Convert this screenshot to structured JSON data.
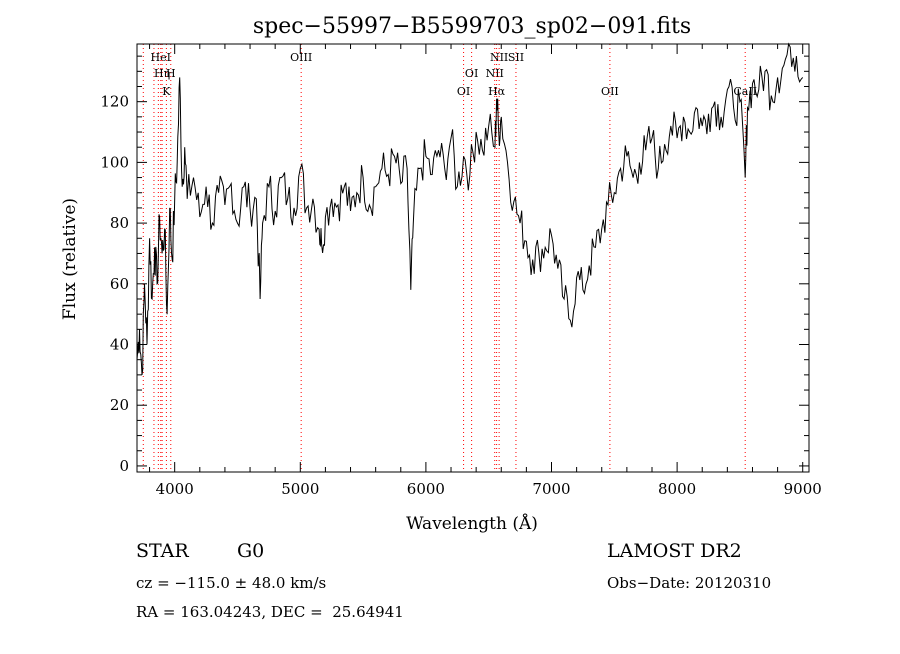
{
  "chart_data": {
    "type": "line",
    "title": "spec−55997−B5599703_sp02−091.fits",
    "xlabel": "Wavelength (Å)",
    "ylabel": "Flux (relative)",
    "xlim": [
      3700,
      9050
    ],
    "ylim": [
      -2,
      139
    ],
    "xticks": [
      4000,
      5000,
      6000,
      7000,
      8000,
      9000
    ],
    "yticks": [
      0,
      20,
      40,
      60,
      80,
      100,
      120
    ],
    "grid": false,
    "line_color": "#000000",
    "marker_color": "#ff0000",
    "series": [
      {
        "x": [
          3700,
          3720,
          3740,
          3760,
          3780,
          3800,
          3820,
          3840,
          3860,
          3880,
          3900,
          3920,
          3940,
          3960,
          3980,
          4000,
          4020,
          4040,
          4060,
          4080,
          4100,
          4150,
          4200,
          4250,
          4300,
          4350,
          4400,
          4450,
          4500,
          4550,
          4600,
          4650,
          4680,
          4700,
          4750,
          4800,
          4850,
          4900,
          4950,
          5000,
          5050,
          5100,
          5150,
          5170,
          5200,
          5250,
          5300,
          5350,
          5400,
          5450,
          5500,
          5550,
          5600,
          5650,
          5700,
          5750,
          5800,
          5850,
          5880,
          5900,
          5950,
          6000,
          6050,
          6100,
          6150,
          6200,
          6250,
          6300,
          6350,
          6400,
          6450,
          6500,
          6550,
          6563,
          6580,
          6600,
          6650,
          6700,
          6750,
          6800,
          6850,
          6900,
          6950,
          7000,
          7050,
          7100,
          7150,
          7200,
          7250,
          7300,
          7350,
          7400,
          7450,
          7500,
          7550,
          7600,
          7650,
          7700,
          7750,
          7800,
          7850,
          7900,
          7950,
          8000,
          8050,
          8100,
          8150,
          8200,
          8250,
          8300,
          8350,
          8400,
          8450,
          8500,
          8542,
          8560,
          8600,
          8650,
          8700,
          8750,
          8800,
          8850,
          8900,
          8950,
          9000
        ],
        "y": [
          35,
          45,
          30,
          60,
          40,
          75,
          55,
          72,
          60,
          82,
          70,
          78,
          50,
          85,
          68,
          88,
          100,
          128,
          92,
          105,
          88,
          95,
          82,
          92,
          80,
          90,
          86,
          93,
          80,
          92,
          85,
          88,
          55,
          80,
          92,
          84,
          95,
          88,
          85,
          98,
          85,
          88,
          78,
          73,
          82,
          88,
          86,
          92,
          84,
          90,
          95,
          86,
          92,
          98,
          96,
          102,
          93,
          98,
          58,
          80,
          98,
          102,
          96,
          104,
          98,
          108,
          92,
          102,
          96,
          110,
          104,
          112,
          105,
          121,
          110,
          115,
          100,
          87,
          80,
          74,
          68,
          70,
          72,
          76,
          65,
          55,
          48,
          62,
          58,
          66,
          72,
          78,
          86,
          90,
          98,
          102,
          95,
          100,
          104,
          108,
          98,
          106,
          112,
          108,
          115,
          110,
          118,
          112,
          116,
          120,
          115,
          124,
          118,
          120,
          95,
          118,
          126,
          124,
          130,
          122,
          128,
          132,
          138,
          135,
          128
        ]
      }
    ],
    "lines": [
      {
        "x": 3750,
        "row": 0,
        "text": ""
      },
      {
        "x": 3835,
        "row": 1,
        "text": ""
      },
      {
        "x": 3870,
        "row": 0,
        "text": ""
      },
      {
        "x": 3889,
        "row": 0,
        "text": "HeI"
      },
      {
        "x": 3900,
        "row": 1,
        "text": "Hη"
      },
      {
        "x": 3934,
        "row": 2,
        "text": "K"
      },
      {
        "x": 3969,
        "row": 1,
        "text": "H"
      },
      {
        "x": 5007,
        "row": 0,
        "text": "OIII"
      },
      {
        "x": 6300,
        "row": 2,
        "text": "OI"
      },
      {
        "x": 6364,
        "row": 1,
        "text": "OI"
      },
      {
        "x": 6548,
        "row": 1,
        "text": "NII"
      },
      {
        "x": 6563,
        "row": 2,
        "text": "Hα"
      },
      {
        "x": 6583,
        "row": 0,
        "text": "NII"
      },
      {
        "x": 6717,
        "row": 0,
        "text": "SII"
      },
      {
        "x": 7465,
        "row": 2,
        "text": "OII"
      },
      {
        "x": 8542,
        "row": 2,
        "text": "CaII"
      }
    ]
  },
  "info": {
    "object_class": "STAR",
    "subclass": "G0",
    "survey": "LAMOST DR2",
    "cz": "cz = −115.0 ± 48.0 km/s",
    "obs_date": "Obs−Date: 20120310",
    "coords": "RA = 163.04243, DEC =  25.64941"
  }
}
